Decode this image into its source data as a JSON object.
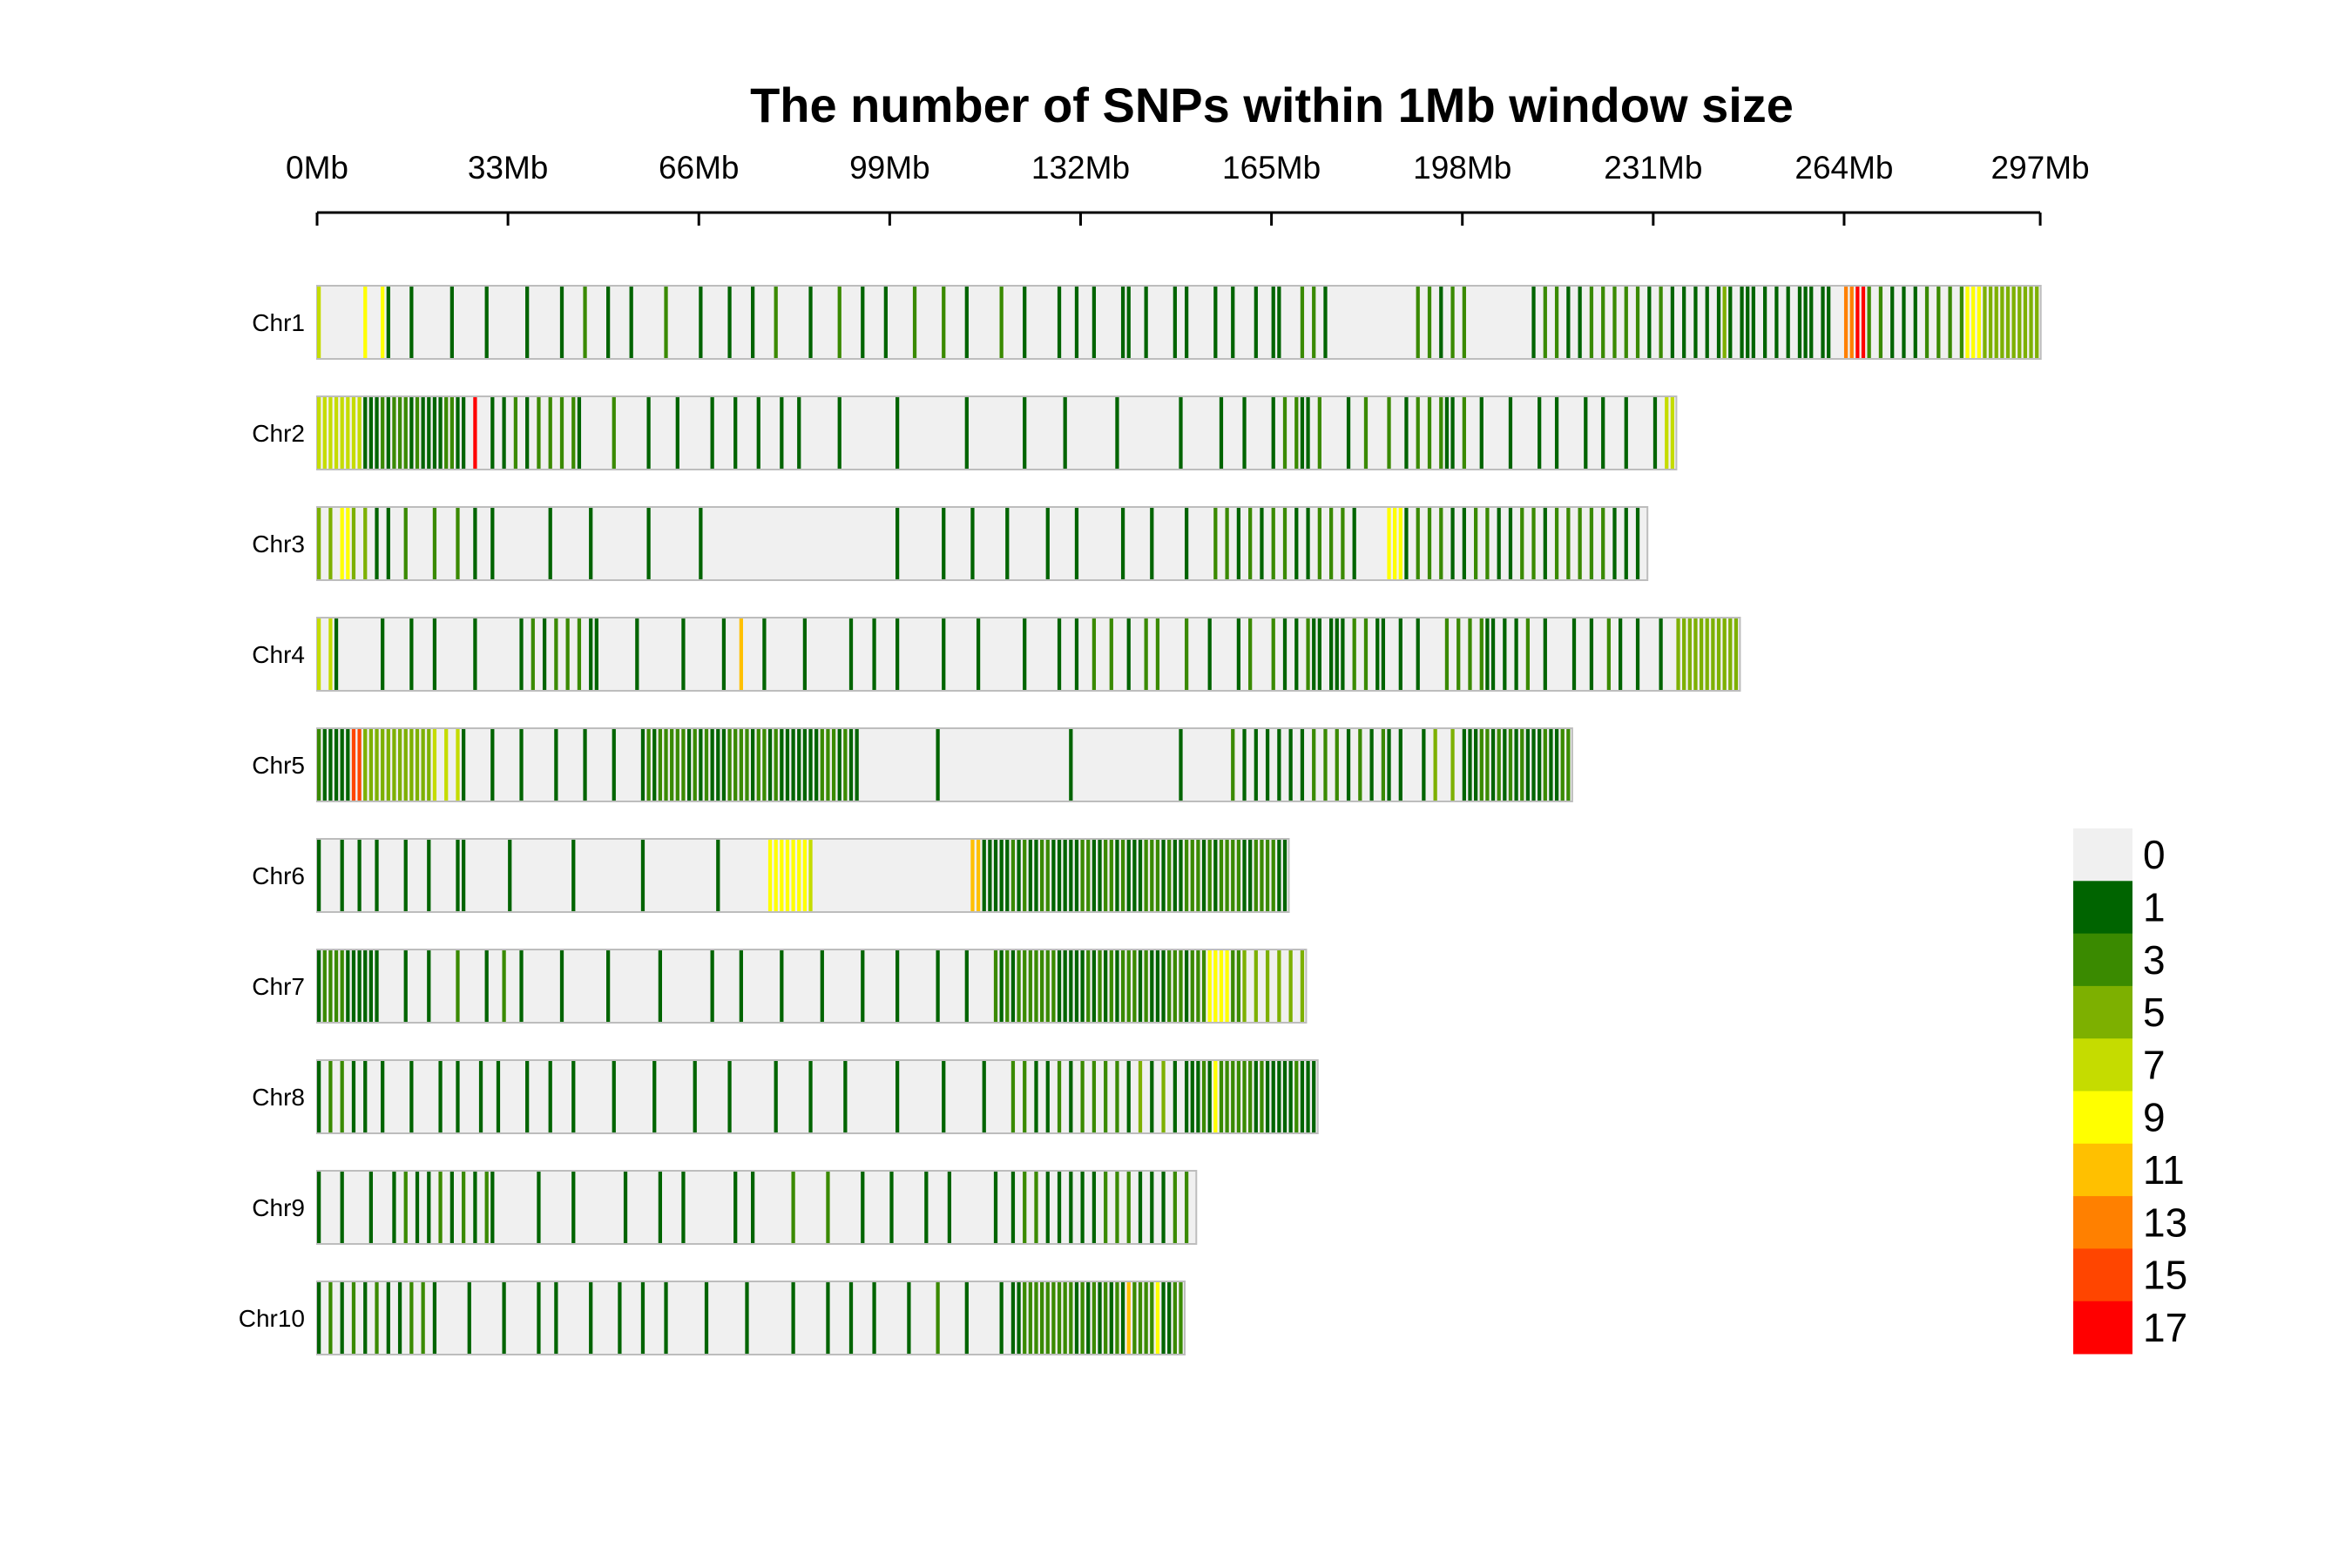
{
  "chart_data": {
    "type": "heatmap",
    "title": "The number of SNPs within 1Mb window size",
    "x_ticks": [
      "0Mb",
      "33Mb",
      "66Mb",
      "99Mb",
      "132Mb",
      "165Mb",
      "198Mb",
      "231Mb",
      "264Mb",
      "297Mb"
    ],
    "x_tick_values_mb": [
      0,
      33,
      66,
      99,
      132,
      165,
      198,
      231,
      264,
      297
    ],
    "x_range_mb": [
      0,
      297
    ],
    "window_size_mb": 1,
    "legend": {
      "labels": [
        "0",
        "1",
        "3",
        "5",
        "7",
        "9",
        "11",
        "13",
        "15",
        "17"
      ],
      "values": [
        0,
        1,
        3,
        5,
        7,
        9,
        11,
        13,
        15,
        17
      ],
      "colors": [
        "#F0F0F0",
        "#006400",
        "#3A8A00",
        "#7DB000",
        "#C5DC00",
        "#FFFF00",
        "#FFC000",
        "#FF8000",
        "#FF4500",
        "#FF0000"
      ],
      "placement": "right"
    },
    "chromosomes": [
      {
        "name": "Chr1",
        "length_mb": 298,
        "dense": [
          [
            0,
            3,
            7,
            3
          ],
          [
            8,
            12,
            9,
            3
          ],
          [
            170,
            175,
            3,
            2
          ],
          [
            190,
            200,
            3,
            2
          ],
          [
            210,
            240,
            3,
            2
          ],
          [
            236,
            262,
            1,
            2
          ],
          [
            264,
            266,
            13,
            1
          ],
          [
            266,
            268,
            17,
            1
          ],
          [
            268,
            285,
            3,
            2
          ],
          [
            285,
            288,
            9,
            1
          ],
          [
            288,
            298,
            5,
            1
          ]
        ],
        "sparse": [
          [
            12,
            168,
            3,
            5
          ],
          [
            240,
            262,
            5,
            4
          ],
          [
            140,
            170,
            1,
            12
          ]
        ]
      },
      {
        "name": "Chr2",
        "length_mb": 235,
        "dense": [
          [
            0,
            8,
            7,
            1
          ],
          [
            8,
            26,
            3,
            1
          ],
          [
            27,
            28,
            17,
            1
          ],
          [
            30,
            45,
            3,
            2
          ],
          [
            165,
            175,
            3,
            2
          ],
          [
            190,
            200,
            3,
            2
          ],
          [
            233,
            235,
            7,
            1
          ]
        ],
        "sparse": [
          [
            45,
            90,
            3,
            5
          ],
          [
            90,
            160,
            1,
            10
          ],
          [
            160,
            232,
            3,
            4
          ]
        ]
      },
      {
        "name": "Chr3",
        "length_mb": 230,
        "dense": [
          [
            0,
            10,
            5,
            2
          ],
          [
            4,
            6,
            9,
            1
          ],
          [
            155,
            180,
            3,
            2
          ],
          [
            185,
            188,
            9,
            1
          ],
          [
            188,
            230,
            3,
            2
          ]
        ],
        "sparse": [
          [
            10,
            30,
            3,
            4
          ],
          [
            30,
            70,
            1,
            8
          ],
          [
            100,
            155,
            1,
            7
          ]
        ]
      },
      {
        "name": "Chr4",
        "length_mb": 246,
        "dense": [
          [
            0,
            3,
            7,
            2
          ],
          [
            73,
            74,
            11,
            1
          ],
          [
            35,
            48,
            3,
            2
          ],
          [
            128,
            145,
            3,
            3
          ],
          [
            165,
            185,
            3,
            2
          ],
          [
            195,
            210,
            3,
            2
          ],
          [
            235,
            246,
            5,
            1
          ]
        ],
        "sparse": [
          [
            3,
            35,
            1,
            6
          ],
          [
            48,
            128,
            1,
            6
          ],
          [
            145,
            235,
            3,
            4
          ]
        ]
      },
      {
        "name": "Chr5",
        "length_mb": 217,
        "dense": [
          [
            0,
            6,
            3,
            1
          ],
          [
            6,
            8,
            15,
            1
          ],
          [
            8,
            20,
            5,
            1
          ],
          [
            20,
            25,
            7,
            2
          ],
          [
            57,
            93,
            3,
            1
          ],
          [
            158,
            185,
            3,
            2
          ],
          [
            198,
            217,
            3,
            1
          ]
        ],
        "sparse": [
          [
            25,
            57,
            1,
            5
          ],
          [
            93,
            158,
            1,
            20
          ],
          [
            185,
            198,
            5,
            3
          ]
        ]
      },
      {
        "name": "Chr6",
        "length_mb": 168,
        "dense": [
          [
            78,
            85,
            9,
            1
          ],
          [
            85,
            86,
            7,
            1
          ],
          [
            113,
            115,
            11,
            1
          ],
          [
            115,
            168,
            3,
            1
          ]
        ],
        "sparse": [
          [
            0,
            25,
            1,
            4
          ],
          [
            25,
            78,
            1,
            10
          ]
        ]
      },
      {
        "name": "Chr7",
        "length_mb": 171,
        "dense": [
          [
            0,
            10,
            3,
            1
          ],
          [
            117,
            160,
            3,
            1
          ],
          [
            154,
            158,
            9,
            1
          ],
          [
            160,
            171,
            5,
            2
          ]
        ],
        "sparse": [
          [
            10,
            35,
            3,
            4
          ],
          [
            35,
            117,
            1,
            7
          ]
        ]
      },
      {
        "name": "Chr8",
        "length_mb": 173,
        "dense": [
          [
            0,
            8,
            3,
            2
          ],
          [
            120,
            140,
            3,
            2
          ],
          [
            150,
            173,
            3,
            1
          ],
          [
            155,
            156,
            9,
            1
          ]
        ],
        "sparse": [
          [
            8,
            40,
            1,
            5
          ],
          [
            40,
            120,
            1,
            7
          ],
          [
            140,
            150,
            5,
            3
          ]
        ]
      },
      {
        "name": "Chr9",
        "length_mb": 152,
        "dense": [
          [
            15,
            30,
            3,
            2
          ],
          [
            120,
            152,
            3,
            2
          ]
        ],
        "sparse": [
          [
            0,
            15,
            1,
            4
          ],
          [
            30,
            75,
            1,
            7
          ],
          [
            75,
            120,
            3,
            6
          ]
        ]
      },
      {
        "name": "Chr10",
        "length_mb": 150,
        "dense": [
          [
            0,
            20,
            3,
            2
          ],
          [
            120,
            150,
            3,
            1
          ],
          [
            140,
            141,
            11,
            1
          ],
          [
            145,
            146,
            9,
            1
          ]
        ],
        "sparse": [
          [
            20,
            60,
            1,
            5
          ],
          [
            60,
            120,
            3,
            6
          ]
        ]
      }
    ]
  }
}
